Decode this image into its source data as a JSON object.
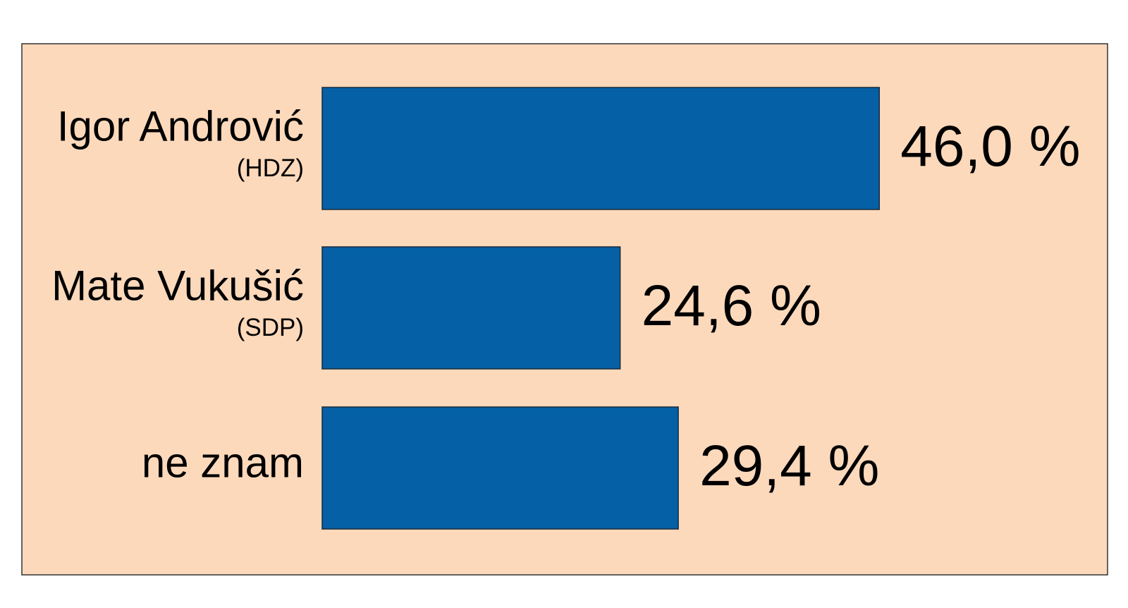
{
  "chart_data": {
    "type": "bar",
    "orientation": "horizontal",
    "categories": [
      "Igor Andrović",
      "Mate Vukušić",
      "ne znam"
    ],
    "sublabels": [
      "(HDZ)",
      "(SDP)",
      null
    ],
    "values": [
      46.0,
      24.6,
      29.4
    ],
    "value_labels": [
      "46,0 %",
      "24,6 %",
      "29,4 %"
    ],
    "color": "#0560a6",
    "background": "#fdd9bb"
  }
}
